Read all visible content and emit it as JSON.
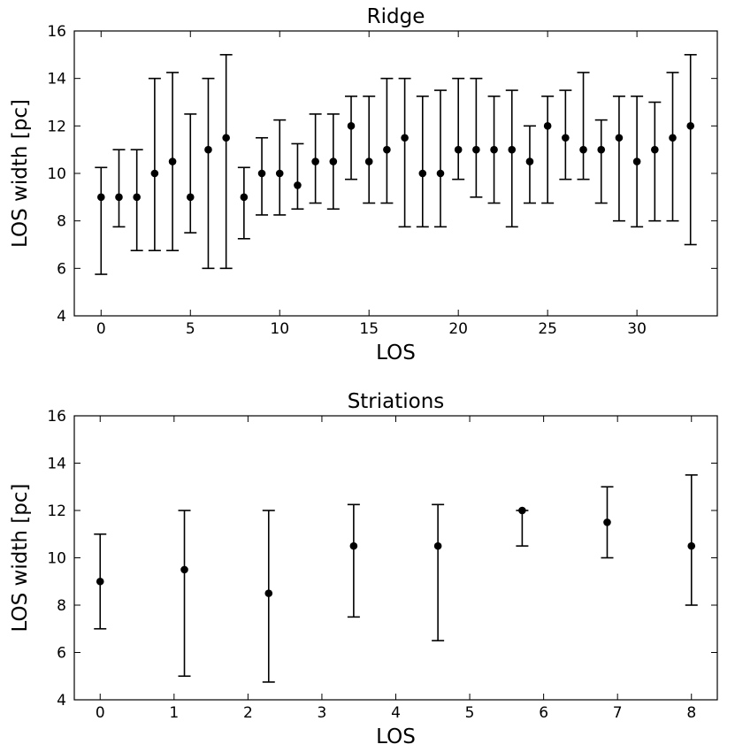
{
  "chart_data": [
    {
      "type": "scatter",
      "title": "Ridge",
      "xlabel": "LOS",
      "ylabel": "LOS width [pc]",
      "xlim": [
        -1.5,
        34.5
      ],
      "ylim": [
        4,
        16
      ],
      "xticks": [
        0,
        5,
        10,
        15,
        20,
        25,
        30
      ],
      "yticks": [
        4,
        6,
        8,
        10,
        12,
        14,
        16
      ],
      "x": [
        0,
        1,
        2,
        3,
        4,
        5,
        6,
        7,
        8,
        9,
        10,
        11,
        12,
        13,
        14,
        15,
        16,
        17,
        18,
        19,
        20,
        21,
        22,
        23,
        24,
        25,
        26,
        27,
        28,
        29,
        30,
        31,
        32,
        33
      ],
      "y": [
        9,
        9,
        9,
        10,
        10.5,
        9,
        11,
        11.5,
        9,
        10,
        10,
        9.5,
        10.5,
        10.5,
        12,
        10.5,
        11,
        11.5,
        10,
        10,
        11,
        11,
        11,
        11,
        10.5,
        12,
        11.5,
        11,
        11,
        11.5,
        10.5,
        11,
        11.5,
        12
      ],
      "y_lower": [
        5.75,
        7.75,
        6.75,
        6.75,
        6.75,
        7.5,
        6,
        6,
        7.25,
        8.25,
        8.25,
        8.5,
        8.75,
        8.5,
        9.75,
        8.75,
        8.75,
        7.75,
        7.75,
        7.75,
        9.75,
        9,
        8.75,
        7.75,
        8.75,
        8.75,
        9.75,
        9.75,
        8.75,
        8,
        7.75,
        8,
        8,
        7
      ],
      "y_upper": [
        10.25,
        11,
        11,
        14,
        14.25,
        12.5,
        14,
        15,
        10.25,
        11.5,
        12.25,
        11.25,
        12.5,
        12.5,
        13.25,
        13.25,
        14,
        14,
        13.25,
        13.5,
        14,
        14,
        13.25,
        13.5,
        12,
        13.25,
        13.5,
        14.25,
        12.25,
        13.25,
        13.25,
        13,
        14.25,
        15
      ]
    },
    {
      "type": "scatter",
      "title": "Striations",
      "xlabel": "LOS",
      "ylabel": "LOS width [pc]",
      "xlim": [
        -0.35,
        8.35
      ],
      "ylim": [
        4,
        16
      ],
      "xticks": [
        0,
        1,
        2,
        3,
        4,
        5,
        6,
        7,
        8
      ],
      "yticks": [
        4,
        6,
        8,
        10,
        12,
        14,
        16
      ],
      "x": [
        0,
        1.14,
        2.28,
        3.43,
        4.57,
        5.71,
        6.86,
        8
      ],
      "y": [
        9,
        9.5,
        8.5,
        10.5,
        10.5,
        12,
        11.5,
        10.5
      ],
      "y_lower": [
        7,
        5,
        4.75,
        7.5,
        6.5,
        10.5,
        10,
        8
      ],
      "y_upper": [
        11,
        12,
        12,
        12.25,
        12.25,
        12,
        13,
        13.5
      ]
    }
  ]
}
